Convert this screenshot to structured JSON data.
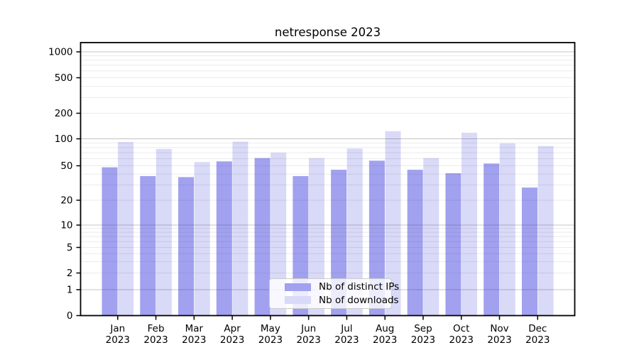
{
  "chart_data": {
    "type": "bar",
    "title": "netresponse 2023",
    "categories": [
      "Jan",
      "Feb",
      "Mar",
      "Apr",
      "May",
      "Jun",
      "Jul",
      "Aug",
      "Sep",
      "Oct",
      "Nov",
      "Dec"
    ],
    "category_year_line": "2023",
    "series": [
      {
        "name": "Nb of distinct IPs",
        "slug": "distinct-ips",
        "color": "#a1a1f0",
        "values": [
          48,
          38,
          37,
          56,
          61,
          38,
          45,
          57,
          45,
          41,
          53,
          28
        ]
      },
      {
        "name": "Nb of downloads",
        "slug": "downloads",
        "color": "#d9d9f8",
        "values": [
          92,
          77,
          55,
          93,
          70,
          61,
          78,
          123,
          61,
          118,
          89,
          83
        ]
      }
    ],
    "yticks": [
      0,
      1,
      2,
      5,
      10,
      20,
      50,
      100,
      200,
      500,
      1000
    ],
    "yscale": "log-like with 0 baseline",
    "ylim": [
      0,
      1300
    ],
    "xlabel": "",
    "ylabel": "",
    "grid": true,
    "legend_position": "lower center"
  }
}
